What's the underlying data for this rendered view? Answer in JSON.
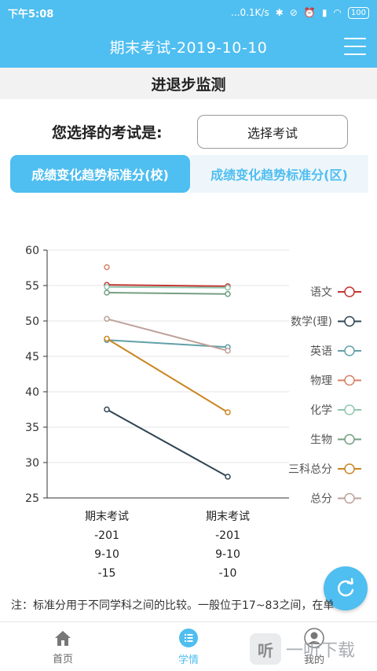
{
  "status_bar": {
    "time": "下午5:08",
    "network_speed": "...0.1K/s",
    "battery": "100"
  },
  "header": {
    "title": "期末考试-2019-10-10"
  },
  "section": {
    "title": "进退步监测"
  },
  "exam_select": {
    "label": "您选择的考试是:",
    "button_label": "选择考试"
  },
  "tabs": [
    {
      "label": "成绩变化趋势标准分(校)",
      "active": true
    },
    {
      "label": "成绩变化趋势标准分(区)",
      "active": false
    }
  ],
  "chart_data": {
    "type": "line",
    "x_labels": [
      [
        "期末考试",
        "-201",
        "9-10",
        "-15"
      ],
      [
        "期末考试",
        "-201",
        "9-10",
        "-10"
      ]
    ],
    "ylim": [
      25,
      60
    ],
    "yticks": [
      25,
      30,
      35,
      40,
      45,
      50,
      55,
      60
    ],
    "grid": true,
    "legend_position": "right",
    "series": [
      {
        "name": "语文",
        "color": "#c23531",
        "values": [
          55.1,
          54.9
        ]
      },
      {
        "name": "数学(理)",
        "color": "#2f4554",
        "values": [
          37.5,
          28.0
        ]
      },
      {
        "name": "英语",
        "color": "#61a0a8",
        "values": [
          47.3,
          46.3
        ]
      },
      {
        "name": "物理",
        "color": "#d48265",
        "values": [
          57.6,
          null
        ]
      },
      {
        "name": "化学",
        "color": "#91c7ae",
        "values": [
          54.8,
          54.7
        ]
      },
      {
        "name": "生物",
        "color": "#749f83",
        "values": [
          54.0,
          53.8
        ]
      },
      {
        "name": "三科总分",
        "color": "#ca8622",
        "values": [
          47.5,
          37.1
        ]
      },
      {
        "name": "总分",
        "color": "#bda29a",
        "values": [
          50.3,
          45.8
        ]
      }
    ]
  },
  "note": {
    "text": "注：标准分用于不同学科之间的比较。一般位于17~83之间，在单"
  },
  "bottom_nav": [
    {
      "label": "首页",
      "icon": "home-icon",
      "active": false
    },
    {
      "label": "学情",
      "icon": "list-icon",
      "active": true
    },
    {
      "label": "我的",
      "icon": "user-icon",
      "active": false
    }
  ],
  "watermark": {
    "text": "一听下载"
  },
  "colors": {
    "primary": "#4fbef0",
    "header_bg": "#4fbef0",
    "section_bg": "#f2f2f2",
    "tab_inactive_bg": "#eef6fb"
  }
}
